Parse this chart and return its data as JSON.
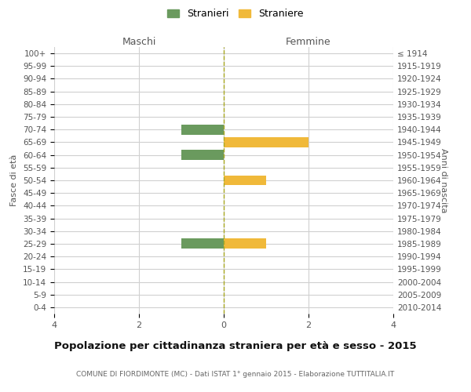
{
  "age_groups": [
    "0-4",
    "5-9",
    "10-14",
    "15-19",
    "20-24",
    "25-29",
    "30-34",
    "35-39",
    "40-44",
    "45-49",
    "50-54",
    "55-59",
    "60-64",
    "65-69",
    "70-74",
    "75-79",
    "80-84",
    "85-89",
    "90-94",
    "95-99",
    "100+"
  ],
  "birth_years": [
    "2010-2014",
    "2005-2009",
    "2000-2004",
    "1995-1999",
    "1990-1994",
    "1985-1989",
    "1980-1984",
    "1975-1979",
    "1970-1974",
    "1965-1969",
    "1960-1964",
    "1955-1959",
    "1950-1954",
    "1945-1949",
    "1940-1944",
    "1935-1939",
    "1930-1934",
    "1925-1929",
    "1920-1924",
    "1915-1919",
    "≤ 1914"
  ],
  "maschi_values": [
    0,
    0,
    0,
    0,
    0,
    -1,
    0,
    0,
    0,
    0,
    0,
    0,
    -1,
    0,
    -1,
    0,
    0,
    0,
    0,
    0,
    0
  ],
  "femmine_values": [
    0,
    0,
    0,
    0,
    0,
    1,
    0,
    0,
    0,
    0,
    1,
    0,
    0,
    2,
    0,
    0,
    0,
    0,
    0,
    0,
    0
  ],
  "color_maschi": "#6a9a5e",
  "color_femmine": "#f0b93a",
  "xlim": [
    -4,
    4
  ],
  "xlabel_left": "Maschi",
  "xlabel_right": "Femmine",
  "ylabel_left": "Fasce di età",
  "ylabel_right": "Anni di nascita",
  "legend_stranieri": "Stranieri",
  "legend_straniere": "Straniere",
  "title": "Popolazione per cittadinanza straniera per età e sesso - 2015",
  "subtitle": "COMUNE DI FIORDIMONTE (MC) - Dati ISTAT 1° gennaio 2015 - Elaborazione TUTTITALIA.IT",
  "xticks": [
    -4,
    -2,
    0,
    2,
    4
  ],
  "xtick_labels": [
    "4",
    "2",
    "0",
    "2",
    "4"
  ],
  "background_color": "#ffffff",
  "grid_color": "#d0d0d0",
  "bar_height": 0.8
}
